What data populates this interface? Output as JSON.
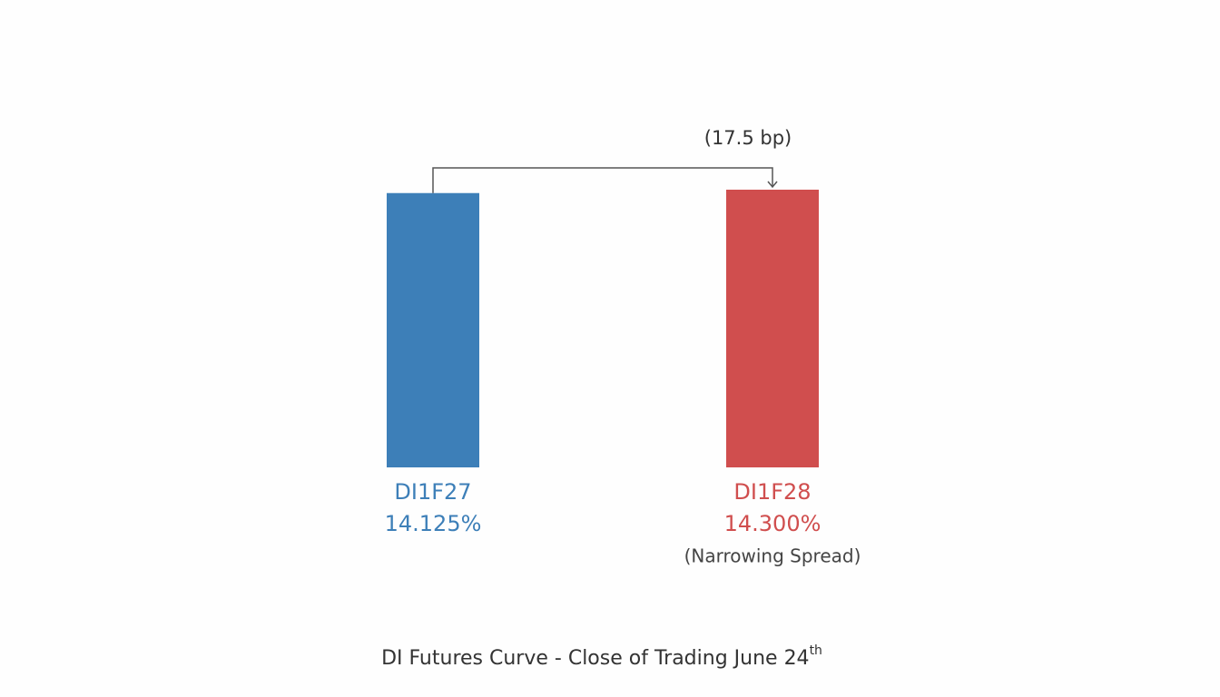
{
  "chart_data": {
    "type": "bar",
    "title": "DI Futures Curve - Close of Trading June 24",
    "title_superscript": "th",
    "categories": [
      "DI1F27",
      "DI1F28"
    ],
    "values": [
      14.125,
      14.3
    ],
    "value_labels": [
      "14.125%",
      "14.300%"
    ],
    "colors": [
      "#3d7fb8",
      "#d04e4e"
    ],
    "spread_label": "(17.5 bp)",
    "note": "(Narrowing Spread)"
  }
}
